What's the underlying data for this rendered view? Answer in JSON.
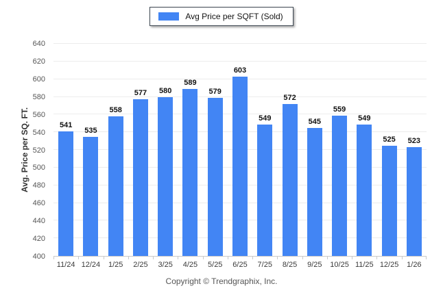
{
  "chart_data": {
    "type": "bar",
    "title": "",
    "legend_label": "Avg Price per SQFT (Sold)",
    "legend_position": "top",
    "categories": [
      "11/24",
      "12/24",
      "1/25",
      "2/25",
      "3/25",
      "4/25",
      "5/25",
      "6/25",
      "7/25",
      "8/25",
      "9/25",
      "10/25",
      "11/25",
      "12/25",
      "1/26"
    ],
    "values": [
      541,
      535,
      558,
      577,
      580,
      589,
      579,
      603,
      549,
      572,
      545,
      559,
      549,
      525,
      523
    ],
    "xlabel": "",
    "ylabel": "Avg. Price per SQ. FT.",
    "ylim": [
      400,
      640
    ],
    "yticks": [
      400,
      420,
      440,
      460,
      480,
      500,
      520,
      540,
      560,
      580,
      600,
      620,
      640
    ],
    "grid": "horizontal",
    "bar_color": "#4285F4",
    "gridline_color": "#ececec",
    "axis_color": "#c9c9c9"
  },
  "footer": {
    "copyright": "Copyright © Trendgraphix, Inc."
  }
}
